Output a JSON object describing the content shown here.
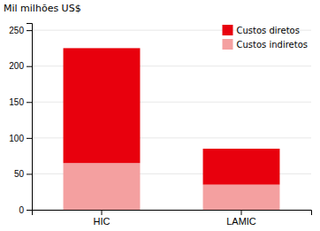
{
  "chart_data": {
    "type": "bar",
    "stacked": true,
    "categories": [
      "HIC",
      "LAMIC"
    ],
    "series": [
      {
        "name": "Custos indiretos",
        "color": "#f4a0a0",
        "values": [
          65,
          35
        ]
      },
      {
        "name": "Custos diretos",
        "color": "#e8000d",
        "values": [
          160,
          50
        ]
      }
    ],
    "ylabel": "Mil milhões US$",
    "ylim": [
      0,
      260
    ],
    "yticks": [
      0,
      50,
      100,
      150,
      200,
      250
    ],
    "grid": true,
    "legend": "upper right"
  }
}
